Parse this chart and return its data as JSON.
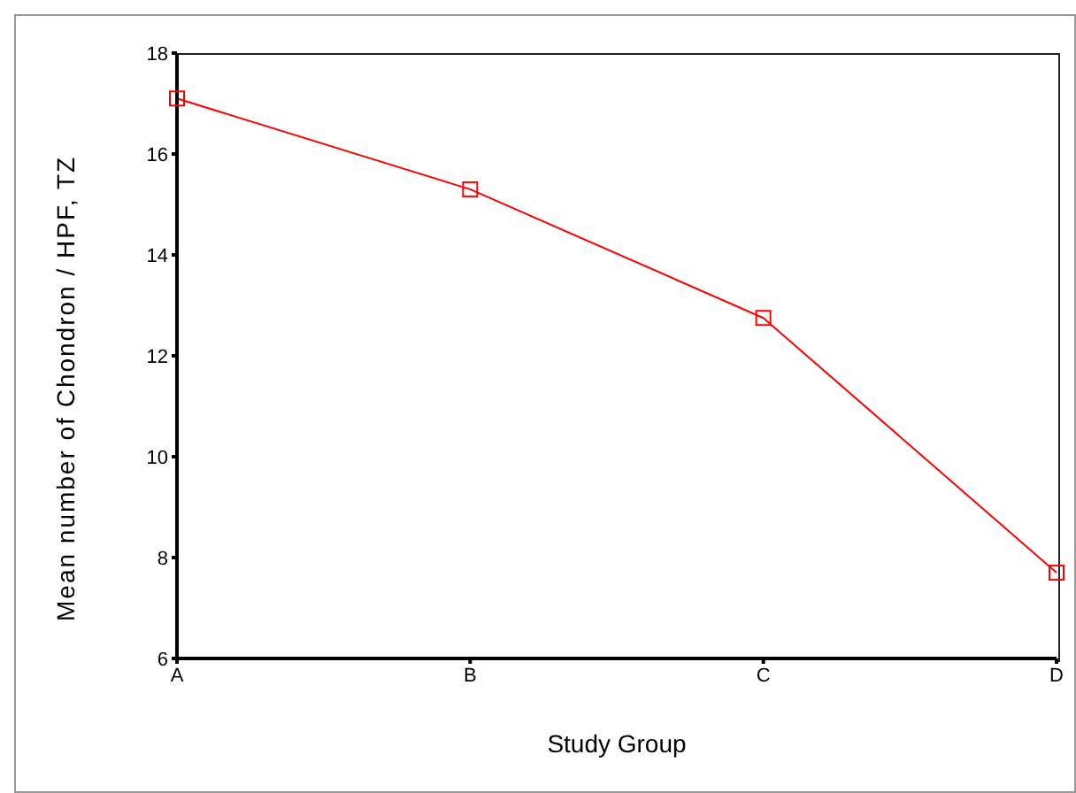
{
  "chart_data": {
    "type": "line",
    "xlabel": "Study Group",
    "ylabel": "Mean number of Chondron / HPF, TZ",
    "categories": [
      "A",
      "B",
      "C",
      "D"
    ],
    "series": [
      {
        "color": "#ff0000",
        "values": [
          17.1,
          15.3,
          12.75,
          7.7
        ]
      }
    ],
    "ylim": [
      6,
      18
    ],
    "yticks": [
      6,
      8,
      10,
      12,
      14,
      16,
      18
    ],
    "grid": false,
    "legend": false,
    "marker": "square",
    "line_style": "solid"
  }
}
